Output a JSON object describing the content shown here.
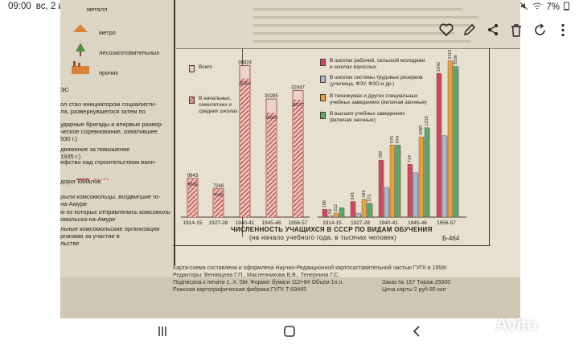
{
  "status_bar": {
    "time": "09:00",
    "date": "вс, 2 июл.",
    "battery": "7%"
  },
  "toolbar": {
    "icons": [
      "heart-icon",
      "pencil-icon",
      "share-icon",
      "trash-icon",
      "rotate-icon",
      "more-icon"
    ]
  },
  "left_strip": {
    "lines": [
      "металл",
      "метро",
      "лесозаготовительных",
      "прочих",
      "ЭС",
      "ол стал инициатором социалисти-",
      "ла, развернувшегося затем по",
      "ударные бригады и впервые развер-",
      "ческое соревнование, охватившее",
      "930 г.)",
      "движение за повышение",
      "1935 г.)",
      "ефство над строительством ванн-",
      "дорог каналов",
      "рыли комсомольцы, воздвигшие го-",
      "на-Амуре",
      "ю из которых отправлялись комсомоль-",
      "омольска-на-Амуре",
      "льные комсомольские организации",
      "рганами за участие в",
      "льстве"
    ]
  },
  "chart_a": {
    "bar_labels": [
      "9943",
      "7248",
      "38824",
      "30285",
      "32447"
    ],
    "inner_labels": [
      "9656",
      "7040",
      "35552",
      "26810",
      "30127"
    ],
    "legend": [
      {
        "label": "Всего"
      },
      {
        "label": "В начальных,\nсемилетних и\nсредних школах"
      }
    ]
  },
  "chart_b": {
    "bar_labels": [
      "106",
      "54",
      "212",
      "243",
      "189",
      "172",
      "769",
      "975",
      "974",
      "714",
      "1085",
      "1210",
      "1942",
      "2112",
      "2036"
    ],
    "legend": [
      {
        "label": "В школах рабочей, сельской молодежи\nи школах взрослых",
        "color": "#d2455c"
      },
      {
        "label": "В школах системы трудовых резервов\n(училища, ФЗУ, ФЗО и др.)",
        "color": "#a9b8d3"
      },
      {
        "label": "В техникумах и других специальных\nучебных заведениях (включая заочные)",
        "color": "#e7a13a"
      },
      {
        "label": "В высших учебных заведениях\n(включая заочные)",
        "color": "#5aa86a"
      }
    ]
  },
  "chart_data": [
    {
      "type": "bar",
      "categories": [
        "1914-15",
        "1927-28",
        "1940-41",
        "1945-46",
        "1956-57"
      ],
      "series": [
        {
          "name": "Всего",
          "values": [
            9943,
            7248,
            38824,
            30285,
            32447
          ]
        },
        {
          "name": "В начальных, семилетних и средних школах",
          "values": [
            9656,
            7040,
            35552,
            26810,
            30127
          ]
        }
      ]
    },
    {
      "type": "bar",
      "categories": [
        "1914-15",
        "1927-28",
        "1940-41",
        "1945-46",
        "1956-57"
      ],
      "series": [
        {
          "name": "В школах рабочей, сельской молодежи и школах взрослых",
          "values": [
            106,
            212,
            769,
            714,
            1942
          ]
        },
        {
          "name": "В школах системы трудовых резервов (училища, ФЗУ, ФЗО и др.)",
          "values": [
            20,
            54,
            400,
            600,
            1100
          ]
        },
        {
          "name": "В техникумах и других специальных учебных заведениях (включая заочные)",
          "values": [
            54,
            243,
            975,
            1085,
            2112
          ]
        },
        {
          "name": "В высших учебных заведениях (включая заочные)",
          "values": [
            127,
            189,
            974,
            1210,
            2036
          ]
        }
      ]
    }
  ],
  "caption": {
    "line1": "ЧИСЛЕННОСТЬ УЧАЩИХСЯ В СССР ПО ВИДАМ ОБУЧЕНИЯ",
    "line2": "(на начало учебного года, в тысячах человек)",
    "sheet": "Б-464"
  },
  "footer": {
    "lines": [
      "Карта-схема составлена и оформлена Научно-Редакционной картосоставительной частью ГУГК в 1958г.",
      "Редакторы: Венявцева Г.П., Масленникова В.В., Тепернина Г.С.",
      "Подписана к печати 1. X. 58г. Формат бумаги 112×84 Объем 1п.л.",
      "Рижская картографическая фабрика ГУГК Т-09465"
    ],
    "right_lines": [
      "Заказ № 157   Тираж 25000",
      "Цена карты 2 руб 85 коп"
    ]
  },
  "watermark": "Avito"
}
